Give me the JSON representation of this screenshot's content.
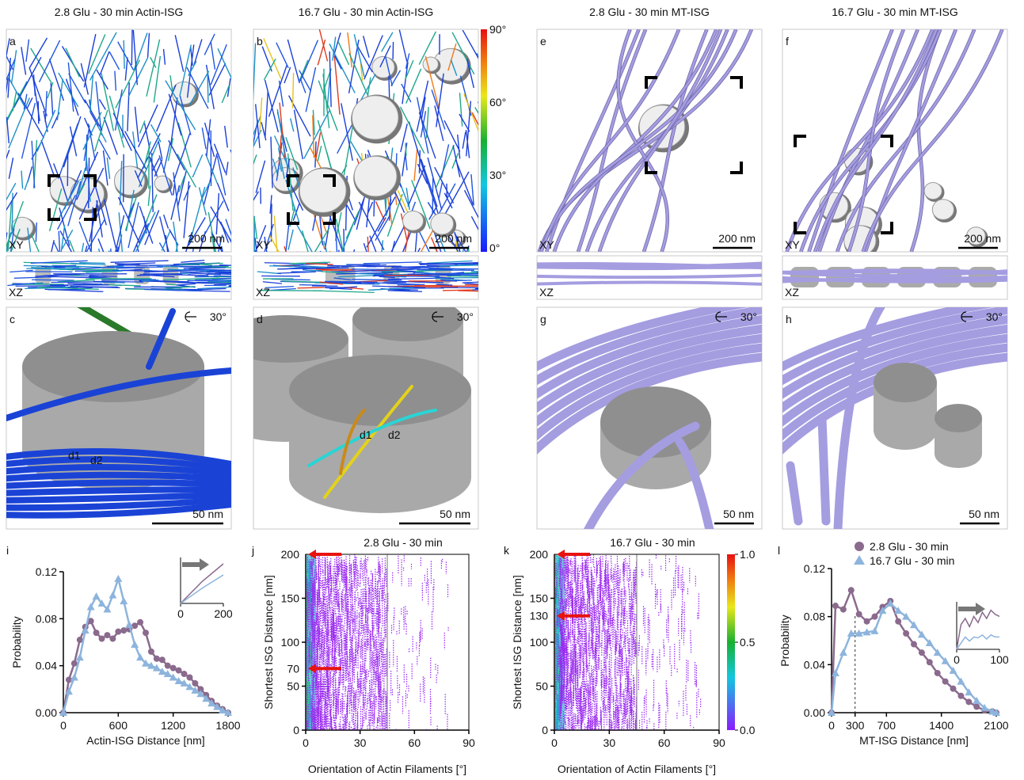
{
  "columns": [
    {
      "title": "2.8 Glu - 30 min Actin-ISG",
      "xy": {
        "letter": "a",
        "view": "XY",
        "scale": "200 nm"
      },
      "xz": {
        "view": "XZ"
      },
      "zoom": {
        "letter": "c",
        "rotation": "30°",
        "scale": "50 nm",
        "distances": [
          "d1",
          "d2"
        ]
      }
    },
    {
      "title": "16.7 Glu - 30 min Actin-ISG",
      "xy": {
        "letter": "b",
        "view": "XY",
        "scale": "200 nm"
      },
      "xz": {
        "view": "XZ"
      },
      "zoom": {
        "letter": "d",
        "rotation": "30°",
        "scale": "50 nm",
        "distances": [
          "d1",
          "d2"
        ]
      }
    },
    {
      "title": "2.8 Glu - 30 min MT-ISG",
      "xy": {
        "letter": "e",
        "view": "XY",
        "scale": "200 nm"
      },
      "xz": {
        "view": "XZ"
      },
      "zoom": {
        "letter": "g",
        "rotation": "30°",
        "scale": "50 nm"
      }
    },
    {
      "title": "16.7 Glu - 30 min MT-ISG",
      "xy": {
        "letter": "f",
        "view": "XY",
        "scale": "200 nm"
      },
      "xz": {
        "view": "XZ"
      },
      "zoom": {
        "letter": "h",
        "rotation": "30°",
        "scale": "50 nm"
      }
    }
  ],
  "orientation_colorbar": {
    "ticks": [
      "90°",
      "60°",
      "30°",
      "0°"
    ]
  },
  "chart_data": [
    {
      "letter": "i",
      "type": "line",
      "xlabel": "Actin-ISG Distance [nm]",
      "ylabel": "Probability",
      "x": [
        0,
        60,
        120,
        180,
        240,
        300,
        360,
        420,
        480,
        540,
        600,
        660,
        720,
        780,
        840,
        900,
        960,
        1020,
        1080,
        1140,
        1200,
        1260,
        1320,
        1380,
        1440,
        1500,
        1560,
        1620,
        1680,
        1740,
        1800
      ],
      "series": [
        {
          "color": "#8a6a8d",
          "marker": "circle",
          "values": [
            0,
            0.028,
            0.042,
            0.062,
            0.073,
            0.078,
            0.068,
            0.063,
            0.066,
            0.063,
            0.069,
            0.07,
            0.071,
            0.074,
            0.077,
            0.068,
            0.052,
            0.046,
            0.045,
            0.04,
            0.038,
            0.036,
            0.033,
            0.03,
            0.025,
            0.02,
            0.015,
            0.01,
            0.006,
            0.003,
            0
          ]
        },
        {
          "color": "#8db4dc",
          "marker": "triangle",
          "values": [
            0,
            0.018,
            0.03,
            0.047,
            0.07,
            0.09,
            0.099,
            0.093,
            0.088,
            0.1,
            0.114,
            0.095,
            0.075,
            0.058,
            0.047,
            0.042,
            0.04,
            0.038,
            0.035,
            0.033,
            0.03,
            0.027,
            0.025,
            0.022,
            0.019,
            0.016,
            0.012,
            0.008,
            0.005,
            0.002,
            0
          ]
        }
      ],
      "xlim": [
        0,
        1800
      ],
      "xticks": [
        0,
        600,
        1200,
        1800
      ],
      "ylim": [
        0,
        0.12
      ],
      "yticks": [
        {
          "value": 0,
          "label": "0.00"
        },
        {
          "value": 0.04,
          "label": "0.04"
        },
        {
          "value": 0.08,
          "label": "0.08"
        },
        {
          "value": 0.12,
          "label": "0.12"
        }
      ],
      "inset": {
        "x": [
          0,
          100,
          200
        ],
        "xlim": [
          0,
          200
        ],
        "ylim": [
          0,
          1
        ],
        "xticks": [
          0,
          200
        ],
        "series": [
          {
            "color": "#8a6a8d",
            "values": [
              0,
              0.55,
              1
            ]
          },
          {
            "color": "#8db4dc",
            "values": [
              0,
              0.38,
              0.72
            ]
          }
        ]
      }
    },
    {
      "letter": "j",
      "type": "heatmap",
      "title": "2.8 Glu - 30 min",
      "xlabel": "Orientation of Actin Filaments [°]",
      "ylabel": "Shortest ISG Distance [nm]",
      "xlim": [
        0,
        90
      ],
      "xticks": [
        0,
        30,
        60,
        90
      ],
      "ylim": [
        0,
        200
      ],
      "yticks": [
        0,
        50,
        100,
        150
      ],
      "highlights": [
        200,
        70
      ],
      "highlight_color": "#e8130f",
      "vline": 45
    },
    {
      "letter": "k",
      "type": "heatmap",
      "title": "16.7 Glu - 30 min",
      "xlabel": "Orientation of Actin Filaments [°]",
      "ylabel": "Shortest ISG Distance [nm]",
      "xlim": [
        0,
        90
      ],
      "xticks": [
        0,
        30,
        60,
        90
      ],
      "ylim": [
        0,
        200
      ],
      "yticks": [
        0,
        50,
        100,
        150
      ],
      "highlights": [
        200,
        130
      ],
      "highlight_color": "#e8130f",
      "vline": 45,
      "colorbar": {
        "lim": [
          0,
          1
        ],
        "ticks": [
          {
            "value": 0,
            "label": "0.0"
          },
          {
            "value": 0.5,
            "label": "0.5"
          },
          {
            "value": 1,
            "label": "1.0"
          }
        ]
      }
    },
    {
      "letter": "l",
      "type": "line",
      "xlabel": "MT-ISG Distance [nm]",
      "ylabel": "Probability",
      "x": [
        0,
        50,
        150,
        250,
        350,
        450,
        550,
        650,
        750,
        850,
        950,
        1050,
        1150,
        1250,
        1350,
        1450,
        1550,
        1650,
        1750,
        1850,
        1950,
        2050,
        2100
      ],
      "series": [
        {
          "name": "2.8 Glu - 30 min",
          "color": "#8a6a8d",
          "marker": "circle",
          "values": [
            0,
            0.089,
            0.086,
            0.102,
            0.082,
            0.076,
            0.08,
            0.088,
            0.093,
            0.076,
            0.066,
            0.057,
            0.05,
            0.042,
            0.033,
            0.026,
            0.02,
            0.014,
            0.009,
            0.005,
            0.002,
            0.001,
            0
          ]
        },
        {
          "name": "16.7 Glu - 30 min",
          "color": "#8db4dc",
          "marker": "triangle",
          "values": [
            0,
            0.033,
            0.05,
            0.066,
            0.066,
            0.067,
            0.068,
            0.085,
            0.091,
            0.085,
            0.08,
            0.073,
            0.065,
            0.058,
            0.05,
            0.043,
            0.035,
            0.026,
            0.017,
            0.01,
            0.004,
            0.001,
            0
          ]
        }
      ],
      "xlim": [
        0,
        2100
      ],
      "xticks": [
        0,
        300,
        700,
        1400,
        2100
      ],
      "vline": 300,
      "ylim": [
        0,
        0.12
      ],
      "yticks": [
        {
          "value": 0,
          "label": "0.00"
        },
        {
          "value": 0.04,
          "label": "0.04"
        },
        {
          "value": 0.08,
          "label": "0.08"
        },
        {
          "value": 0.12,
          "label": "0.12"
        }
      ],
      "inset": {
        "x": [
          0,
          10,
          20,
          30,
          40,
          50,
          60,
          70,
          80,
          90,
          100
        ],
        "xlim": [
          0,
          100
        ],
        "ylim": [
          0,
          1
        ],
        "xticks": [
          0,
          100
        ],
        "series": [
          {
            "color": "#8a6a8d",
            "values": [
              0,
              0.6,
              0.75,
              0.55,
              0.8,
              0.65,
              0.9,
              0.75,
              0.95,
              0.85,
              0.8
            ]
          },
          {
            "color": "#8db4dc",
            "values": [
              0,
              0.15,
              0.3,
              0.2,
              0.3,
              0.28,
              0.35,
              0.25,
              0.35,
              0.3,
              0.3
            ]
          }
        ]
      }
    }
  ]
}
